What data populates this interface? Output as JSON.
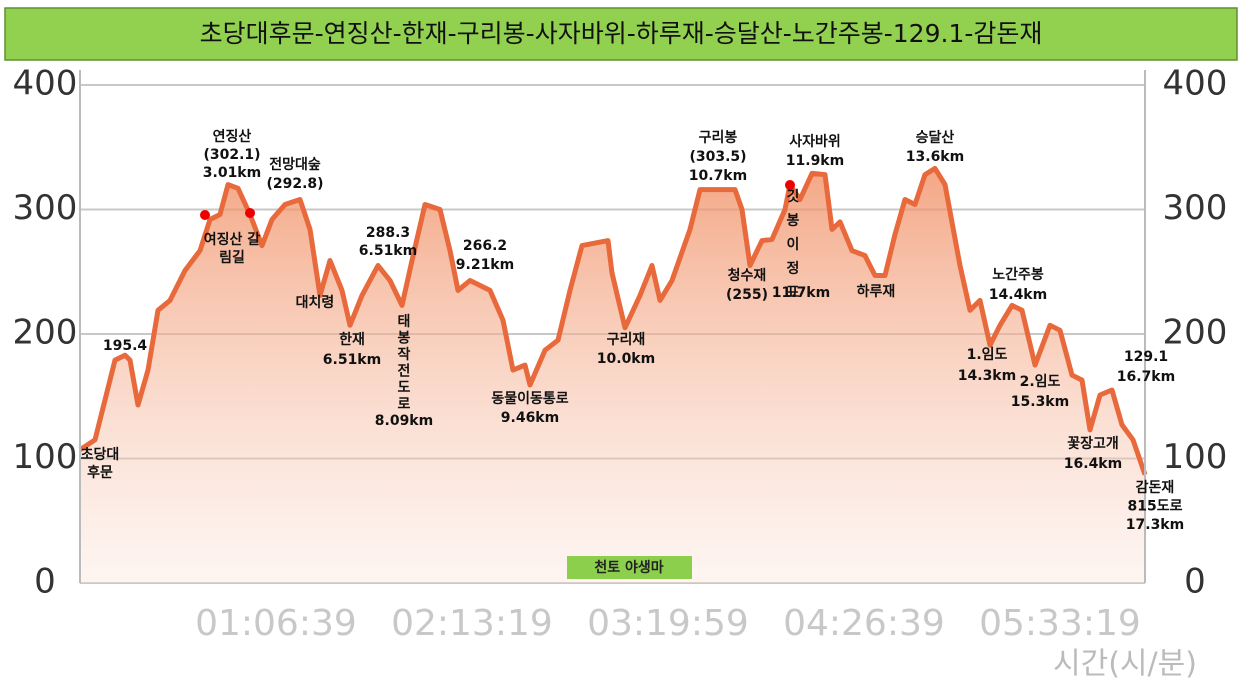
{
  "chart_data": {
    "type": "area",
    "title": "초당대후문-연징산-한재-구리봉-사자바위-하루재-승달산-노간주봉-129.1-감돈재",
    "x": [
      0,
      306,
      510,
      714,
      918,
      1020,
      1184,
      1388,
      1592,
      1837,
      2143,
      2449,
      2653,
      2857,
      3020,
      3224,
      3469,
      3714,
      3918,
      4184,
      4490,
      4694,
      4898,
      5102,
      5347,
      5510,
      5755,
      6082,
      6327,
      6571,
      6776,
      7041,
      7347,
      7551,
      7714,
      7959,
      8367,
      8633,
      8837,
      9082,
      9184,
      9490,
      9755,
      10000,
      10245,
      10776,
      10857,
      11122,
      11429,
      11673,
      11837,
      12082,
      12449,
      12653,
      13367,
      13510,
      13673,
      13918,
      14122,
      14388,
      14490,
      14694,
      14939,
      15204,
      15347,
      15510,
      15755,
      16020,
      16224,
      16429,
      16633,
      16837,
      17041,
      17245,
      17449,
      17653,
      17959,
      18163,
      18367,
      18571,
      18776,
      19020,
      19224,
      19490,
      19796,
      20000,
      20245,
      20449,
      20612,
      20816,
      21061,
      21265,
      21490,
      21735
    ],
    "series": [
      {
        "color": "#e8693b",
        "values": [
          107,
          115,
          147,
          179,
          183,
          179,
          143,
          171,
          219,
          227,
          251,
          267,
          292,
          296,
          320,
          317,
          296,
          271,
          292,
          304,
          308,
          284,
          231,
          259,
          235,
          207,
          231,
          255,
          243,
          223,
          259,
          304,
          300,
          267,
          235,
          243,
          235,
          211,
          171,
          175,
          159,
          187,
          195,
          235,
          271,
          275,
          249,
          205,
          231,
          255,
          227,
          243,
          284,
          316,
          316,
          300,
          255,
          275,
          276,
          300,
          320,
          308,
          329,
          328,
          284,
          290,
          267,
          263,
          247,
          247,
          280,
          308,
          304,
          328,
          333,
          320,
          255,
          219,
          227,
          191,
          207,
          223,
          219,
          175,
          207,
          203,
          167,
          163,
          123,
          151,
          155,
          127,
          115,
          87
        ]
      }
    ],
    "xlim": [
      0,
      21735
    ],
    "xticks": [
      {
        "value": 3999,
        "label": "01:06:39"
      },
      {
        "value": 7999,
        "label": "02:13:19"
      },
      {
        "value": 11999,
        "label": "03:19:59"
      },
      {
        "value": 15999,
        "label": "04:26:39"
      },
      {
        "value": 19999,
        "label": "05:33:19"
      }
    ],
    "xlabel": "시간(시/분)",
    "ylim": [
      0,
      400
    ],
    "yticks": [
      0,
      100,
      200,
      300,
      400
    ],
    "grid": true,
    "badge": "천토 야생마",
    "annotations": [
      {
        "lines": [
          "195.4"
        ]
      },
      {
        "lines": [
          "초당대",
          "후문"
        ]
      },
      {
        "lines": [
          "연징산",
          "(302.1)",
          "3.01km"
        ]
      },
      {
        "lines": [
          "전망대숲",
          "(292.8)"
        ]
      },
      {
        "lines": [
          "여징산 갈",
          "림길"
        ]
      },
      {
        "lines": [
          "대치령"
        ]
      },
      {
        "lines": [
          "한재",
          "6.51km"
        ]
      },
      {
        "lines": [
          "288.3",
          "6.51km"
        ]
      },
      {
        "lines": [
          "태",
          "봉",
          "작",
          "전",
          "도",
          "로",
          "8.09km"
        ]
      },
      {
        "lines": [
          "266.2",
          "9.21km"
        ]
      },
      {
        "lines": [
          "동물이동통로",
          "9.46km"
        ]
      },
      {
        "lines": [
          "구리재",
          "10.0km"
        ]
      },
      {
        "lines": [
          "구리봉",
          "(303.5)",
          "10.7km"
        ]
      },
      {
        "lines": [
          "청수재",
          "(255)"
        ]
      },
      {
        "lines": [
          "사자바위",
          "11.9km"
        ]
      },
      {
        "lines": [
          "깃",
          "봉",
          "이",
          "정",
          "표"
        ]
      },
      {
        "lines": [
          "11.7km"
        ]
      },
      {
        "lines": [
          "하루재"
        ]
      },
      {
        "lines": [
          "승달산",
          "13.6km"
        ]
      },
      {
        "lines": [
          "노간주봉",
          "14.4km"
        ]
      },
      {
        "lines": [
          "1.임도",
          "14.3km"
        ]
      },
      {
        "lines": [
          "2.임도",
          "15.3km"
        ]
      },
      {
        "lines": [
          "129.1",
          "16.7km"
        ]
      },
      {
        "lines": [
          "꽃장고개",
          "16.4km"
        ]
      },
      {
        "lines": [
          "감돈재",
          "815도로",
          "17.3km"
        ]
      }
    ]
  }
}
